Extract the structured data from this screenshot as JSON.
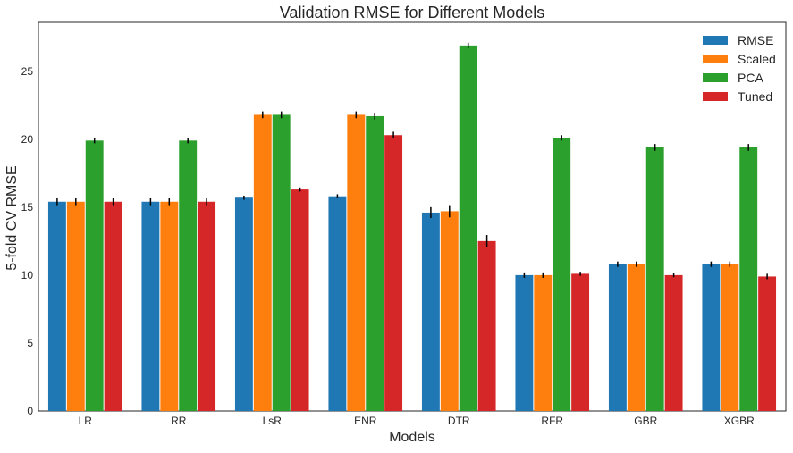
{
  "chart_data": {
    "type": "bar",
    "title": "Validation RMSE for Different Models",
    "xlabel": "Models",
    "ylabel": "5-fold CV RMSE",
    "ylim": [
      0,
      28.6
    ],
    "yticks": [
      0,
      5,
      10,
      15,
      20,
      25
    ],
    "grid": false,
    "legend_position": "top-right",
    "categories": [
      "LR",
      "RR",
      "LsR",
      "ENR",
      "DTR",
      "RFR",
      "GBR",
      "XGBR"
    ],
    "series": [
      {
        "name": "RMSE",
        "color": "#1f77b4",
        "values": [
          15.4,
          15.4,
          15.7,
          15.8,
          14.6,
          10.0,
          10.8,
          10.8
        ],
        "errors": [
          0.25,
          0.25,
          0.15,
          0.15,
          0.4,
          0.2,
          0.2,
          0.2
        ]
      },
      {
        "name": "Scaled",
        "color": "#ff7f0e",
        "values": [
          15.4,
          15.4,
          21.8,
          21.8,
          14.7,
          10.0,
          10.8,
          10.8
        ],
        "errors": [
          0.25,
          0.25,
          0.25,
          0.25,
          0.45,
          0.2,
          0.2,
          0.2
        ]
      },
      {
        "name": "PCA",
        "color": "#2ca02c",
        "values": [
          19.9,
          19.9,
          21.8,
          21.7,
          26.9,
          20.1,
          19.4,
          19.4
        ],
        "errors": [
          0.2,
          0.2,
          0.25,
          0.25,
          0.2,
          0.2,
          0.25,
          0.25
        ]
      },
      {
        "name": "Tuned",
        "color": "#d62728",
        "values": [
          15.4,
          15.4,
          16.3,
          20.3,
          12.5,
          10.1,
          10.0,
          9.9
        ],
        "errors": [
          0.25,
          0.25,
          0.15,
          0.25,
          0.45,
          0.15,
          0.15,
          0.2
        ]
      }
    ]
  }
}
